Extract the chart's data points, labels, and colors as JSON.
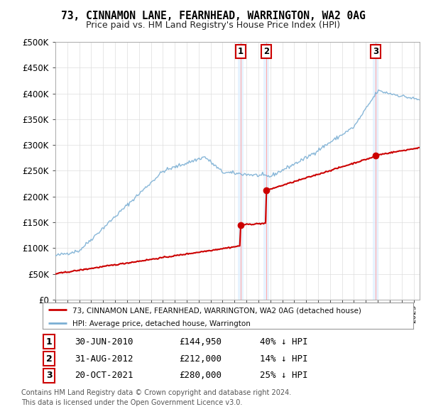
{
  "title": "73, CINNAMON LANE, FEARNHEAD, WARRINGTON, WA2 0AG",
  "subtitle": "Price paid vs. HM Land Registry's House Price Index (HPI)",
  "ylim": [
    0,
    500000
  ],
  "yticks": [
    0,
    50000,
    100000,
    150000,
    200000,
    250000,
    300000,
    350000,
    400000,
    450000,
    500000
  ],
  "ytick_labels": [
    "£0",
    "£50K",
    "£100K",
    "£150K",
    "£200K",
    "£250K",
    "£300K",
    "£350K",
    "£400K",
    "£450K",
    "£500K"
  ],
  "sale_color": "#cc0000",
  "hpi_color": "#7bafd4",
  "sale_label": "73, CINNAMON LANE, FEARNHEAD, WARRINGTON, WA2 0AG (detached house)",
  "hpi_label": "HPI: Average price, detached house, Warrington",
  "transactions": [
    {
      "num": 1,
      "date": "30-JUN-2010",
      "price": 144950,
      "pct": "40%",
      "dir": "↓",
      "year": 2010.5
    },
    {
      "num": 2,
      "date": "31-AUG-2012",
      "price": 212000,
      "pct": "14%",
      "dir": "↓",
      "year": 2012.667
    },
    {
      "num": 3,
      "date": "20-OCT-2021",
      "price": 280000,
      "pct": "25%",
      "dir": "↓",
      "year": 2021.8
    }
  ],
  "footnote1": "Contains HM Land Registry data © Crown copyright and database right 2024.",
  "footnote2": "This data is licensed under the Open Government Licence v3.0.",
  "background_color": "#ffffff",
  "grid_color": "#dddddd",
  "shade_color": "#ddeeff",
  "vline_color": "#ffaaaa",
  "xmin": 1995,
  "xmax": 2025.5
}
